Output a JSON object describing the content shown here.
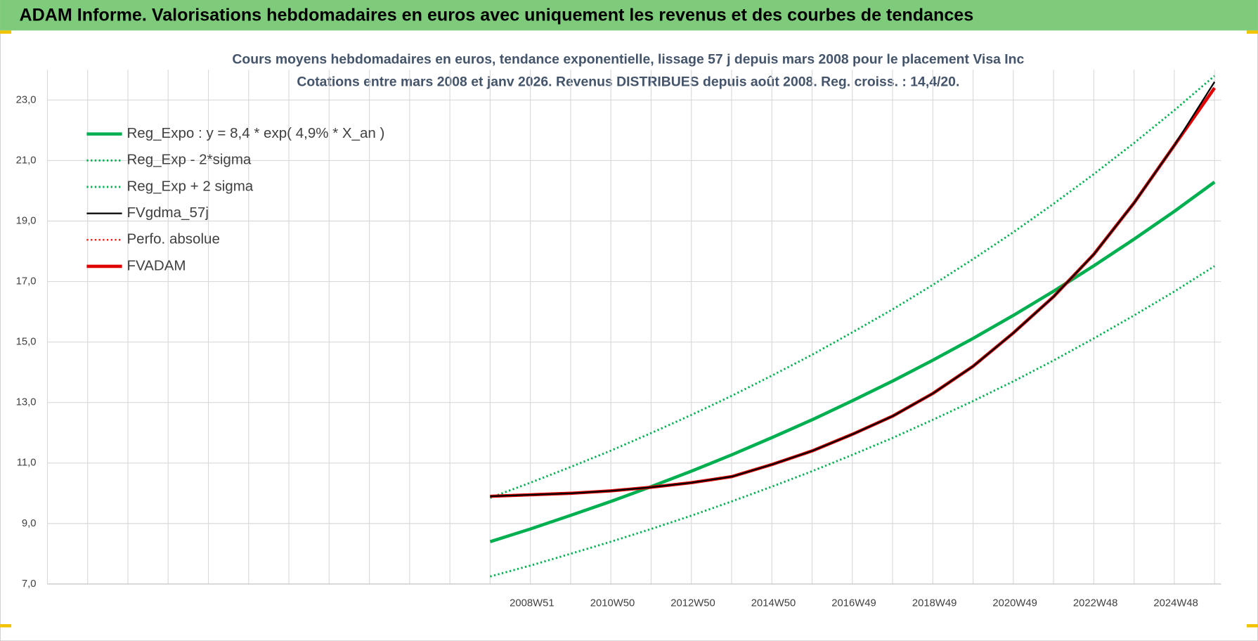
{
  "header": {
    "title": "ADAM Informe. Valorisations hebdomadaires en euros avec uniquement les revenus et des courbes de tendances"
  },
  "chart_data": {
    "type": "line",
    "title": "Cours moyens hebdomadaires en euros, tendance exponentielle, lissage 57 j depuis mars 2008 pour le placement Visa Inc",
    "subtitle": "Cotations entre mars 2008 et janv 2026. Revenus DISTRIBUES depuis août 2008. Reg. croiss. : 14,4/20.",
    "categories": [
      null,
      null,
      null,
      null,
      null,
      null,
      null,
      null,
      null,
      null,
      null,
      null,
      "2008W51",
      null,
      "2010W50",
      null,
      "2012W50",
      null,
      "2014W50",
      null,
      "2016W49",
      null,
      "2018W49",
      null,
      "2020W49",
      null,
      "2022W48",
      null,
      "2024W48",
      null
    ],
    "ylim": [
      7,
      24
    ],
    "yticks": [
      {
        "value": 7,
        "label": "7,0"
      },
      {
        "value": 9,
        "label": "9,0"
      },
      {
        "value": 11,
        "label": "11,0"
      },
      {
        "value": 13,
        "label": "13,0"
      },
      {
        "value": 15,
        "label": "15,0"
      },
      {
        "value": 17,
        "label": "17,0"
      },
      {
        "value": 19,
        "label": "19,0"
      },
      {
        "value": 21,
        "label": "21,0"
      },
      {
        "value": 23,
        "label": "23,0"
      }
    ],
    "grid": true,
    "legend": "top-left",
    "series": [
      {
        "name": "Reg_Expo : y = 8,4 * exp( 4,9% *  X_an )",
        "color": "#00b050",
        "style": "solid",
        "width": 4,
        "values": [
          null,
          null,
          null,
          null,
          null,
          null,
          null,
          null,
          null,
          null,
          null,
          8.4,
          8.82,
          9.27,
          9.73,
          10.22,
          10.73,
          11.27,
          11.84,
          12.43,
          13.06,
          13.71,
          14.4,
          15.12,
          15.88,
          16.68,
          17.52,
          18.4,
          19.32,
          20.29
        ]
      },
      {
        "name": "Reg_Exp - 2*sigma",
        "color": "#00b050",
        "style": "dotted",
        "width": 2.5,
        "values": [
          null,
          null,
          null,
          null,
          null,
          null,
          null,
          null,
          null,
          null,
          null,
          7.25,
          7.61,
          8.0,
          8.4,
          8.82,
          9.26,
          9.73,
          10.22,
          10.73,
          11.27,
          11.83,
          12.43,
          13.05,
          13.7,
          14.39,
          15.12,
          15.88,
          16.67,
          17.51
        ]
      },
      {
        "name": "Reg_Exp + 2 sigma",
        "color": "#00b050",
        "style": "dotted",
        "width": 2.5,
        "values": [
          null,
          null,
          null,
          null,
          null,
          null,
          null,
          null,
          null,
          null,
          null,
          9.85,
          10.35,
          10.87,
          11.41,
          11.99,
          12.59,
          13.22,
          13.89,
          14.58,
          15.32,
          16.08,
          16.89,
          17.74,
          18.63,
          19.57,
          20.55,
          21.58,
          22.66,
          23.8
        ]
      },
      {
        "name": "FVgdma_57j",
        "color": "#000000",
        "style": "solid",
        "width": 2,
        "values": [
          null,
          null,
          null,
          null,
          null,
          null,
          null,
          null,
          null,
          null,
          null,
          9.9,
          9.95,
          10.0,
          10.08,
          10.2,
          10.35,
          10.55,
          10.95,
          11.4,
          11.95,
          12.55,
          13.3,
          14.2,
          15.3,
          16.5,
          17.9,
          19.6,
          21.5,
          23.6
        ]
      },
      {
        "name": "Perfo. absolue",
        "color": "#ff0000",
        "style": "dotted",
        "width": 2,
        "values": [
          null,
          null,
          null,
          null,
          null,
          null,
          null,
          null,
          null,
          null,
          null,
          9.9,
          9.95,
          10.0,
          10.08,
          10.2,
          10.35,
          10.55,
          10.95,
          11.4,
          11.95,
          12.55,
          13.3,
          14.2,
          15.3,
          16.5,
          17.9,
          19.6,
          21.5,
          23.4
        ]
      },
      {
        "name": "FVADAM",
        "color": "#e00000",
        "style": "solid",
        "width": 4,
        "values": [
          null,
          null,
          null,
          null,
          null,
          null,
          null,
          null,
          null,
          null,
          null,
          9.9,
          9.95,
          10.0,
          10.08,
          10.2,
          10.35,
          10.55,
          10.95,
          11.4,
          11.95,
          12.55,
          13.3,
          14.2,
          15.3,
          16.5,
          17.9,
          19.6,
          21.5,
          23.4
        ]
      }
    ]
  }
}
